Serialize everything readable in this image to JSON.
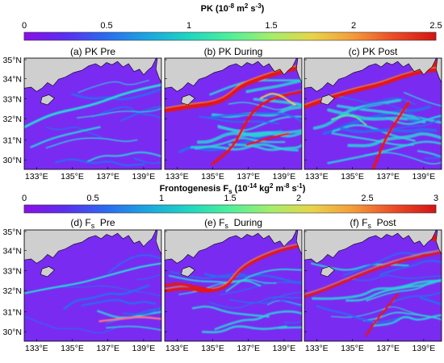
{
  "figure": {
    "colorbars": [
      {
        "title_main": "PK (10",
        "title_sup1": "-8",
        "title_mid": " m",
        "title_sup2": "2",
        "title_mid2": " s",
        "title_sup3": "-3",
        "title_end": ")",
        "ticks": [
          "0",
          "0.5",
          "1",
          "1.5",
          "2",
          "2.5"
        ],
        "range": [
          0,
          2.5
        ]
      },
      {
        "title_main": "Frontogenesis F",
        "title_sub": "s",
        "title_mid": " (10",
        "title_sup1": "-14",
        "title_mid2": " kg",
        "title_sup2": "2",
        "title_mid3": " m",
        "title_sup3": "-8",
        "title_mid4": " s",
        "title_sup4": "-1",
        "title_end": ")",
        "ticks": [
          "0",
          "0.5",
          "1",
          "1.5",
          "2",
          "2.5",
          "3"
        ],
        "range": [
          0,
          3
        ]
      }
    ],
    "colormap": [
      "#8a0fe6",
      "#5a2ff0",
      "#2a6cf0",
      "#1ba6e0",
      "#1fd6c0",
      "#4ef09a",
      "#a4ee6a",
      "#e8d448",
      "#f59a3a",
      "#ea4b26",
      "#d41414"
    ],
    "panels": [
      {
        "id": "a",
        "title": "(a) PK  Pre",
        "variable": "PK",
        "period": "Pre"
      },
      {
        "id": "b",
        "title": "(b) PK  During",
        "variable": "PK",
        "period": "During"
      },
      {
        "id": "c",
        "title": "(c) PK  Post",
        "variable": "PK",
        "period": "Post"
      },
      {
        "id": "d",
        "title_prefix": "(d) F",
        "title_sub": "s",
        "title_suffix": "  Pre",
        "variable": "Fs",
        "period": "Pre"
      },
      {
        "id": "e",
        "title_prefix": "(e) F",
        "title_sub": "s",
        "title_suffix": "  During",
        "variable": "Fs",
        "period": "During"
      },
      {
        "id": "f",
        "title_prefix": "(f) F",
        "title_sub": "s",
        "title_suffix": "  Post",
        "variable": "Fs",
        "period": "Post"
      }
    ],
    "lat_ticks": [
      "35°N",
      "34°N",
      "33°N",
      "32°N",
      "31°N",
      "30°N"
    ],
    "lon_ticks": [
      "133°E",
      "135°E",
      "137°E",
      "139°E"
    ],
    "colors": {
      "land": "#cfcfcf",
      "background_field": "#7a2bf2",
      "front_red": "#e3151a"
    }
  }
}
